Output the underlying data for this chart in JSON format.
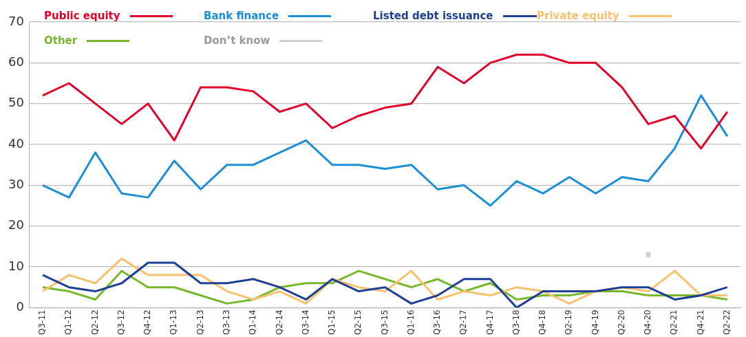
{
  "chart_data": {
    "type": "line",
    "categories": [
      "Q3-11",
      "Q1-12",
      "Q2-12",
      "Q3-12",
      "Q4-12",
      "Q1-13",
      "Q2-13",
      "Q3-13",
      "Q1-14",
      "Q2-14",
      "Q3-14",
      "Q1-15",
      "Q2-15",
      "Q3-15",
      "Q1-16",
      "Q3-16",
      "Q2-17",
      "Q4-17",
      "Q3-18",
      "Q4-18",
      "Q2-19",
      "Q4-19",
      "Q2-20",
      "Q4-20",
      "Q2-21",
      "Q4-21",
      "Q2-22"
    ],
    "series": [
      {
        "name": "Public equity",
        "color": "#e4002b",
        "values": [
          52,
          55,
          50,
          45,
          50,
          41,
          54,
          54,
          53,
          48,
          50,
          44,
          47,
          49,
          50,
          59,
          55,
          60,
          62,
          62,
          60,
          60,
          54,
          45,
          47,
          39,
          48
        ]
      },
      {
        "name": "Bank finance",
        "color": "#1a8fd6",
        "values": [
          30,
          27,
          38,
          28,
          27,
          36,
          29,
          35,
          35,
          38,
          41,
          35,
          35,
          34,
          35,
          29,
          30,
          25,
          31,
          28,
          32,
          28,
          32,
          31,
          39,
          52,
          42
        ]
      },
      {
        "name": "Listed debt issuance",
        "color": "#1d3f94",
        "values": [
          8,
          5,
          4,
          6,
          11,
          11,
          6,
          6,
          7,
          5,
          2,
          7,
          4,
          5,
          1,
          3,
          7,
          7,
          0,
          4,
          4,
          4,
          5,
          5,
          2,
          3,
          5
        ]
      },
      {
        "name": "Private equity",
        "color": "#f9c16e",
        "values": [
          4,
          8,
          6,
          12,
          8,
          8,
          8,
          4,
          2,
          4,
          1,
          7,
          5,
          4,
          9,
          2,
          4,
          3,
          5,
          4,
          1,
          4,
          5,
          4,
          9,
          3,
          3
        ]
      },
      {
        "name": "Other",
        "color": "#76b82a",
        "values": [
          5,
          4,
          2,
          9,
          5,
          5,
          3,
          1,
          2,
          5,
          6,
          6,
          9,
          7,
          5,
          7,
          4,
          6,
          2,
          3,
          3,
          4,
          4,
          3,
          3,
          3,
          2
        ]
      },
      {
        "name": "Don’t know",
        "color": "#d3cfc9",
        "type": "scatter",
        "marker": "square",
        "values": [
          null,
          null,
          null,
          null,
          null,
          null,
          null,
          null,
          null,
          null,
          null,
          null,
          null,
          null,
          null,
          null,
          null,
          null,
          null,
          null,
          null,
          null,
          null,
          13,
          null,
          null,
          null
        ]
      }
    ],
    "ylim": [
      0,
      70
    ],
    "yticks": [
      0,
      10,
      20,
      30,
      40,
      50,
      60,
      70
    ],
    "grid": "y",
    "legend": "top left",
    "marker": "none",
    "line_style": "solid"
  }
}
